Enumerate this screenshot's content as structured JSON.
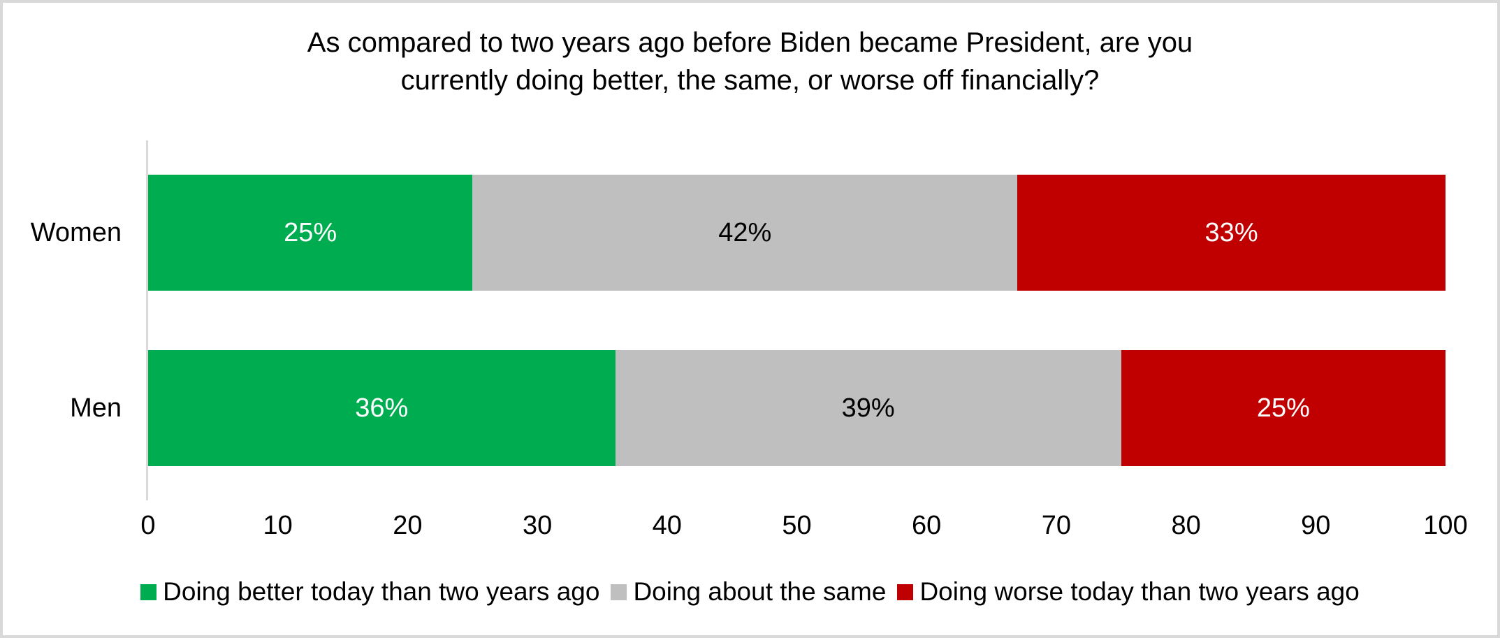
{
  "frame": {
    "background": "#FFFFFF",
    "border_color": "#D9D9D9"
  },
  "chart_data": {
    "type": "bar",
    "orientation": "horizontal",
    "stacked": true,
    "title": "As compared to two years ago before Biden became President, are you currently doing better, the same, or worse off financially?",
    "title_lines": [
      "As compared to two years ago before Biden became President, are you",
      "currently doing better, the same, or worse off financially?"
    ],
    "categories": [
      "Women",
      "Men"
    ],
    "series": [
      {
        "name": "Doing better today than two years ago",
        "color": "#00AC50",
        "label_color": "#FFFFFF",
        "values": [
          25,
          36
        ],
        "labels": [
          "25%",
          "36%"
        ]
      },
      {
        "name": "Doing about the same",
        "color": "#BFBFBF",
        "label_color": "#000000",
        "values": [
          42,
          39
        ],
        "labels": [
          "42%",
          "39%"
        ]
      },
      {
        "name": "Doing worse today than two years ago",
        "color": "#C00000",
        "label_color": "#FFFFFF",
        "values": [
          33,
          25
        ],
        "labels": [
          "33%",
          "25%"
        ]
      }
    ],
    "x_ticks": [
      "0",
      "10",
      "20",
      "30",
      "40",
      "50",
      "60",
      "70",
      "80",
      "90",
      "100"
    ],
    "xlim": [
      0,
      100
    ],
    "grid": false,
    "legend_position": "bottom",
    "axis_color": "#D9D9D9"
  }
}
